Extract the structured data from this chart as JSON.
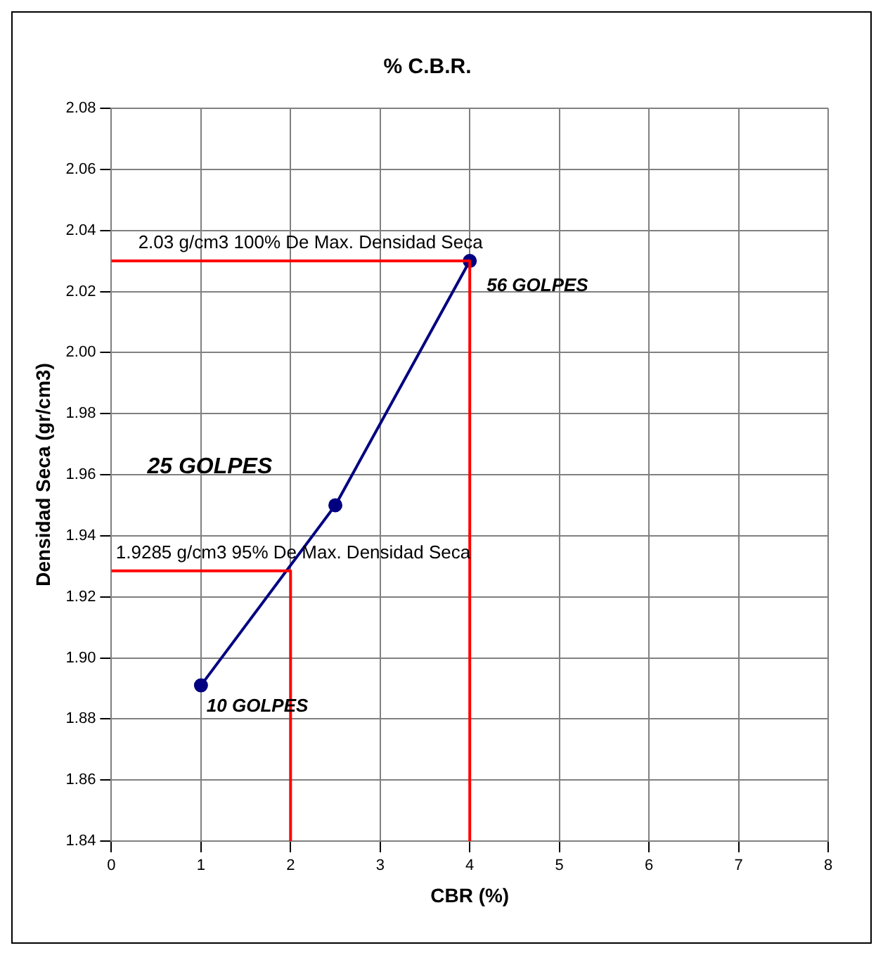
{
  "chart_data": {
    "type": "line",
    "title": "% C.B.R.",
    "xlabel": "CBR (%)",
    "ylabel": "Densidad Seca (gr/cm3)",
    "xlim": [
      0,
      8
    ],
    "xticks": [
      0,
      1,
      2,
      3,
      4,
      5,
      6,
      7,
      8
    ],
    "ylim": [
      1.84,
      2.08
    ],
    "yticks": [
      1.84,
      1.86,
      1.88,
      {
        "value": 1.9,
        "label": "1.90"
      },
      1.92,
      1.94,
      1.96,
      1.98,
      {
        "value": 2,
        "label": "2.00"
      },
      2.02,
      2.04,
      2.06,
      2.08
    ],
    "grid": true,
    "legend": false,
    "marker": "circle",
    "line_style": "solid",
    "series": [
      {
        "color": "#ff0000",
        "marker": "none",
        "x": [
          0,
          4,
          4
        ],
        "values": [
          2.03,
          2.03,
          1.84
        ]
      },
      {
        "color": "#ff0000",
        "marker": "none",
        "x": [
          0,
          2,
          2
        ],
        "values": [
          1.9285,
          1.9285,
          1.84
        ]
      },
      {
        "color": "#000080",
        "x": [
          1,
          2.5,
          4
        ],
        "values": [
          1.891,
          1.95,
          2.03
        ]
      }
    ],
    "annotations": [
      {
        "text": "2.03 g/cm3 100% De Max. Densidad Seca",
        "x": 0.3,
        "y": 2.03
      },
      {
        "text": "1.9285 g/cm3 95% De Max. Densidad Seca",
        "x": 0.05,
        "y": 1.9285
      },
      {
        "text": "56 GOLPES",
        "x": 4,
        "y": 2.03
      },
      "25 GOLPES",
      {
        "text": "10 GOLPES",
        "x": 1,
        "y": 1.891
      }
    ]
  }
}
